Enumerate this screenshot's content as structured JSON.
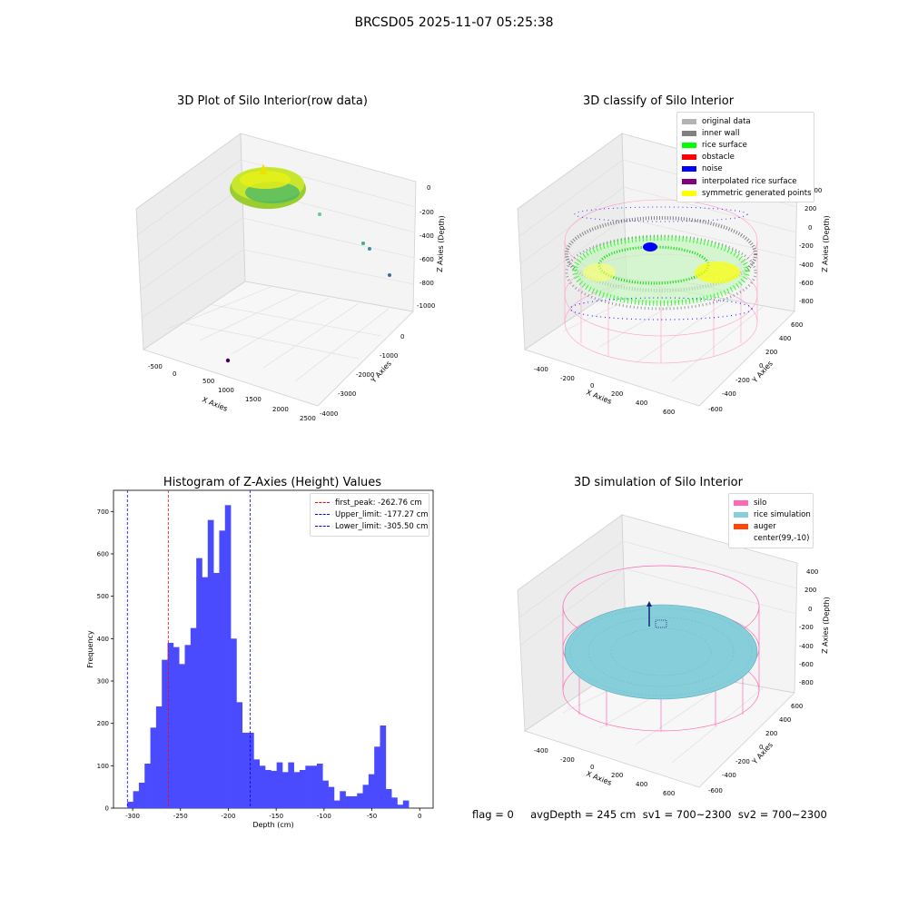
{
  "suptitle": "BRCSD05 2025-11-07 05:25:38",
  "footer": "flag = 0     avgDepth = 245 cm  sv1 = 700~2300  sv2 = 700~2300",
  "colors": {
    "hist_bar": "#4a4aff",
    "first_peak": "#ff0000",
    "limits": "#0000ff",
    "silo": "#ff69b4",
    "rice_sim": "#87cedb",
    "auger": "#ff4500"
  },
  "chart_data": [
    {
      "type": "scatter",
      "title": "3D Plot of Silo Interior(row data)",
      "xlabel": "X Axies",
      "ylabel": "Y Axies",
      "zlabel": "Z Axies (Depth)",
      "x_ticks": [
        "-500",
        "0",
        "500",
        "1000",
        "1500",
        "2000",
        "2500"
      ],
      "y_ticks": [
        "0",
        "-1000",
        "-2000",
        "-3000",
        "-4000"
      ],
      "z_ticks": [
        "0",
        "-200",
        "-400",
        "-600",
        "-800",
        "-1000"
      ]
    },
    {
      "type": "scatter",
      "title": "3D classify of Silo Interior",
      "xlabel": "X Axies",
      "ylabel": "Y Axies",
      "zlabel": "Z Axies (Depth)",
      "x_ticks": [
        "-400",
        "-200",
        "0",
        "200",
        "400",
        "600"
      ],
      "y_ticks": [
        "600",
        "400",
        "200",
        "0",
        "-200",
        "-400",
        "-600"
      ],
      "z_ticks": [
        "400",
        "200",
        "0",
        "-200",
        "-400",
        "-600",
        "-800"
      ],
      "legend": [
        {
          "label": "original data",
          "color": "#b3b3b3"
        },
        {
          "label": "inner wall",
          "color": "#808080"
        },
        {
          "label": "rice surface",
          "color": "#00ff00"
        },
        {
          "label": "obstacle",
          "color": "#ff0000"
        },
        {
          "label": "noise",
          "color": "#0000ff"
        },
        {
          "label": "interpolated rice surface",
          "color": "#800080"
        },
        {
          "label": "symmetric generated points",
          "color": "#ffff00"
        }
      ]
    },
    {
      "type": "bar",
      "title": "Histogram of Z-Axies (Height) Values",
      "xlabel": "Depth (cm)",
      "ylabel": "Frequency",
      "xlim": [
        -320,
        14
      ],
      "ylim": [
        0,
        750
      ],
      "x_ticks": [
        -300,
        -250,
        -200,
        -150,
        -100,
        -50,
        0
      ],
      "y_ticks": [
        0,
        100,
        200,
        300,
        400,
        500,
        600,
        700
      ],
      "bin_start": -305.5,
      "bin_width": 6.0,
      "values": [
        15,
        40,
        60,
        105,
        190,
        240,
        350,
        390,
        380,
        340,
        385,
        425,
        590,
        545,
        680,
        555,
        655,
        715,
        400,
        250,
        178,
        178,
        115,
        100,
        90,
        88,
        108,
        85,
        108,
        85,
        90,
        100,
        100,
        105,
        65,
        50,
        18,
        40,
        28,
        28,
        35,
        55,
        80,
        145,
        195,
        45,
        25,
        8,
        18
      ],
      "vlines": [
        {
          "label": "first_peak: -262.76 cm",
          "x": -262.76,
          "color": "#ff0000"
        },
        {
          "label": "Upper_limit: -177.27 cm",
          "x": -177.27,
          "color": "#0000ff"
        },
        {
          "label": "Lower_limit: -305.50 cm",
          "x": -305.5,
          "color": "#0000ff"
        }
      ]
    },
    {
      "type": "scatter",
      "title": "3D simulation of Silo Interior",
      "xlabel": "X Axies",
      "ylabel": "Y Axies",
      "zlabel": "Z Axies (Depth)",
      "x_ticks": [
        "-400",
        "-200",
        "0",
        "200",
        "400",
        "600"
      ],
      "y_ticks": [
        "600",
        "400",
        "200",
        "0",
        "-200",
        "-400",
        "-600"
      ],
      "z_ticks": [
        "400",
        "200",
        "0",
        "-200",
        "-400",
        "-600",
        "-800"
      ],
      "legend": [
        {
          "label": "silo",
          "color": "#ff69b4"
        },
        {
          "label": "rice simulation",
          "color": "#87cedb"
        },
        {
          "label": "auger",
          "color": "#ff4500"
        },
        {
          "label": "center(99,-10)",
          "color": ""
        }
      ]
    }
  ]
}
